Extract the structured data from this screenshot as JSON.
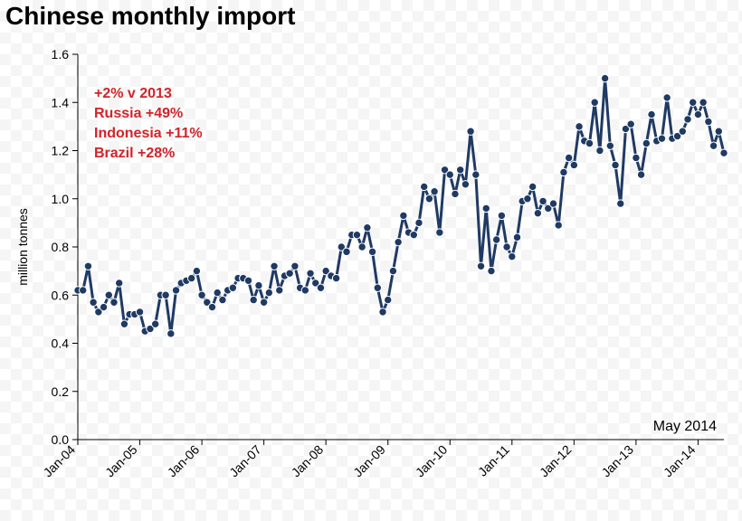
{
  "title": "Chinese monthly import",
  "chart": {
    "type": "line",
    "background_color": "#ffffff",
    "axis_color": "#000000",
    "series_color": "#1f3a63",
    "line_width": 3,
    "marker_radius": 4.2,
    "marker_stroke": "#ffffff",
    "marker_stroke_width": 1,
    "ylabel": "million tonnes",
    "label_fontsize": 14,
    "tick_fontsize": 14,
    "ylim": [
      0.0,
      1.6
    ],
    "ytick_step": 0.2,
    "x_start_year": 2004,
    "x_start_month": 1,
    "x_tick_labels": [
      "Jan-04",
      "Jan-05",
      "Jan-06",
      "Jan-07",
      "Jan-08",
      "Jan-09",
      "Jan-10",
      "Jan-11",
      "Jan-12",
      "Jan-13",
      "Jan-14"
    ],
    "x_tick_positions": [
      0,
      12,
      24,
      36,
      48,
      60,
      72,
      84,
      96,
      108,
      120
    ],
    "values": [
      0.62,
      0.62,
      0.72,
      0.57,
      0.53,
      0.55,
      0.6,
      0.57,
      0.65,
      0.48,
      0.52,
      0.52,
      0.53,
      0.45,
      0.46,
      0.48,
      0.6,
      0.6,
      0.44,
      0.62,
      0.65,
      0.66,
      0.67,
      0.7,
      0.6,
      0.57,
      0.55,
      0.61,
      0.58,
      0.62,
      0.63,
      0.67,
      0.67,
      0.66,
      0.58,
      0.64,
      0.57,
      0.61,
      0.72,
      0.62,
      0.68,
      0.69,
      0.72,
      0.63,
      0.62,
      0.69,
      0.65,
      0.63,
      0.7,
      0.68,
      0.67,
      0.8,
      0.78,
      0.85,
      0.85,
      0.8,
      0.88,
      0.78,
      0.63,
      0.53,
      0.58,
      0.7,
      0.82,
      0.93,
      0.86,
      0.85,
      0.9,
      1.05,
      1.0,
      1.03,
      0.86,
      1.12,
      1.1,
      1.02,
      1.12,
      1.06,
      1.28,
      1.1,
      0.72,
      0.96,
      0.7,
      0.83,
      0.93,
      0.8,
      0.76,
      0.84,
      0.99,
      1.0,
      1.05,
      0.94,
      0.99,
      0.96,
      0.98,
      0.89,
      1.11,
      1.17,
      1.14,
      1.3,
      1.24,
      1.23,
      1.4,
      1.2,
      1.5,
      1.22,
      1.14,
      0.98,
      1.29,
      1.31,
      1.17,
      1.1,
      1.23,
      1.35,
      1.24,
      1.25,
      1.42,
      1.25,
      1.26,
      1.28,
      1.33,
      1.4,
      1.35,
      1.4,
      1.32,
      1.22,
      1.28,
      1.19
    ],
    "annotations": {
      "lines": [
        "+2% v 2013",
        "Russia +49%",
        "Indonesia +11%",
        "Brazil +28%"
      ],
      "color": "#d2232a",
      "fontsize": 16,
      "fontweight": 700
    },
    "footnote": "May 2014",
    "footnote_fontsize": 16
  }
}
